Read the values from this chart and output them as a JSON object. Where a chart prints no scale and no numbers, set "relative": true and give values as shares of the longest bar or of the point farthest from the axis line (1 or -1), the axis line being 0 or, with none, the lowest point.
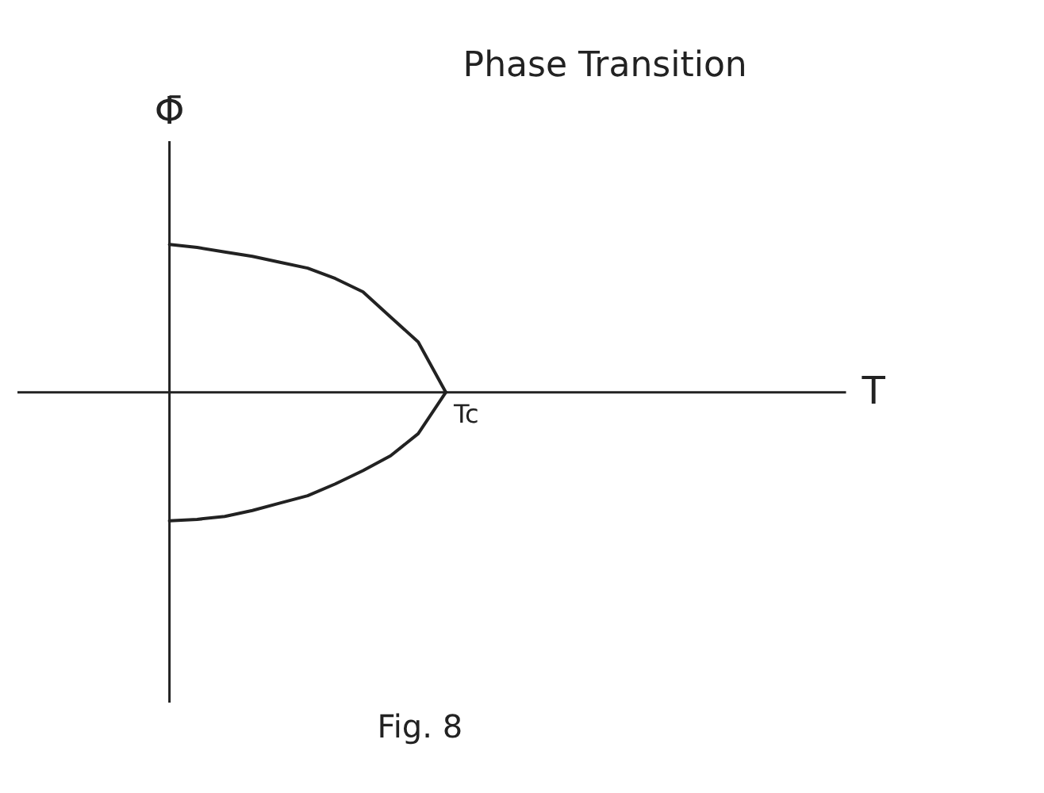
{
  "chart_data": {
    "type": "line",
    "title": "Phase Transition",
    "ylabel": "Φ̄",
    "relative": true,
    "categories": [
      null,
      null,
      null,
      null,
      null,
      null,
      null,
      null,
      null,
      null,
      null
    ],
    "series": [
      {
        "color": "#222222",
        "values": [
          1,
          0.98,
          0.95,
          0.92,
          0.88,
          0.84,
          0.77,
          0.68,
          0.51,
          0.34,
          0
        ]
      },
      {
        "color": "#222222",
        "values": [
          -0.87,
          -0.86,
          -0.84,
          -0.8,
          -0.75,
          -0.7,
          -0.62,
          -0.53,
          -0.43,
          -0.28,
          0
        ]
      }
    ],
    "annotations": [
      "Tc",
      "T",
      "Fig. 8"
    ],
    "marker": "none",
    "line_style": "solid"
  }
}
